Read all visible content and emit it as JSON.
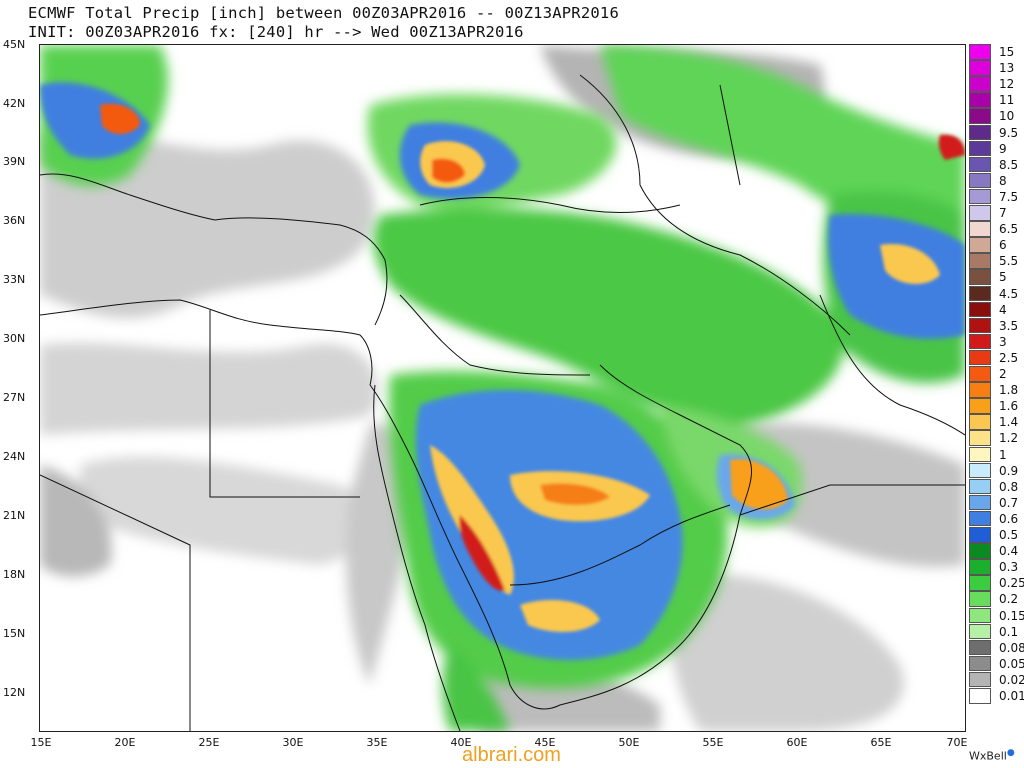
{
  "header": {
    "line1": "ECMWF Total Precip [inch] between 00Z03APR2016 -- 00Z13APR2016",
    "line2": "INIT: 00Z03APR2016 fx: [240] hr --> Wed 00Z13APR2016"
  },
  "map": {
    "lat_labels": [
      "45N",
      "42N",
      "39N",
      "36N",
      "33N",
      "30N",
      "27N",
      "24N",
      "21N",
      "18N",
      "15N",
      "12N"
    ],
    "lon_labels": [
      "15E",
      "20E",
      "25E",
      "30E",
      "35E",
      "40E",
      "45E",
      "50E",
      "55E",
      "60E",
      "65E",
      "70E"
    ]
  },
  "legend": {
    "items": [
      {
        "label": "15",
        "color": "#ee00ee"
      },
      {
        "label": "13",
        "color": "#dd00dd"
      },
      {
        "label": "12",
        "color": "#cc00cc"
      },
      {
        "label": "11",
        "color": "#aa00aa"
      },
      {
        "label": "10",
        "color": "#8a0a8a"
      },
      {
        "label": "9.5",
        "color": "#5e2b8a"
      },
      {
        "label": "9",
        "color": "#5b3a9a"
      },
      {
        "label": "8.5",
        "color": "#6a55b0"
      },
      {
        "label": "8",
        "color": "#8878c4"
      },
      {
        "label": "7.5",
        "color": "#a69ad6"
      },
      {
        "label": "7",
        "color": "#cfc8ea"
      },
      {
        "label": "6.5",
        "color": "#f0d8d0"
      },
      {
        "label": "6",
        "color": "#cfa896"
      },
      {
        "label": "5.5",
        "color": "#a87a66"
      },
      {
        "label": "5",
        "color": "#7a5040"
      },
      {
        "label": "4.5",
        "color": "#5a2a1e"
      },
      {
        "label": "4",
        "color": "#8a0e0e"
      },
      {
        "label": "3.5",
        "color": "#b01212"
      },
      {
        "label": "3",
        "color": "#d21a1a"
      },
      {
        "label": "2.5",
        "color": "#ea3a14"
      },
      {
        "label": "2",
        "color": "#f45a10"
      },
      {
        "label": "1.8",
        "color": "#f67e12"
      },
      {
        "label": "1.6",
        "color": "#f8a01a"
      },
      {
        "label": "1.4",
        "color": "#fac850"
      },
      {
        "label": "1.2",
        "color": "#fce388"
      },
      {
        "label": "1",
        "color": "#fdf6c0"
      },
      {
        "label": "0.9",
        "color": "#c8ecfb"
      },
      {
        "label": "0.8",
        "color": "#96cff3"
      },
      {
        "label": "0.7",
        "color": "#6aa7ea"
      },
      {
        "label": "0.6",
        "color": "#3f7fe0"
      },
      {
        "label": "0.5",
        "color": "#1f5ed4"
      },
      {
        "label": "0.4",
        "color": "#0c8a22"
      },
      {
        "label": "0.3",
        "color": "#1caf2e"
      },
      {
        "label": "0.25",
        "color": "#3ccc40"
      },
      {
        "label": "0.2",
        "color": "#68dc5c"
      },
      {
        "label": "0.15",
        "color": "#8fe67e"
      },
      {
        "label": "0.1",
        "color": "#b6f0a6"
      },
      {
        "label": "0.08",
        "color": "#6e6e6e"
      },
      {
        "label": "0.05",
        "color": "#8c8c8c"
      },
      {
        "label": "0.02",
        "color": "#b4b4b4"
      },
      {
        "label": "0.01",
        "color": "#ffffff"
      }
    ]
  },
  "credits": {
    "brand": "WxBell",
    "watermark": "albrari.com"
  }
}
